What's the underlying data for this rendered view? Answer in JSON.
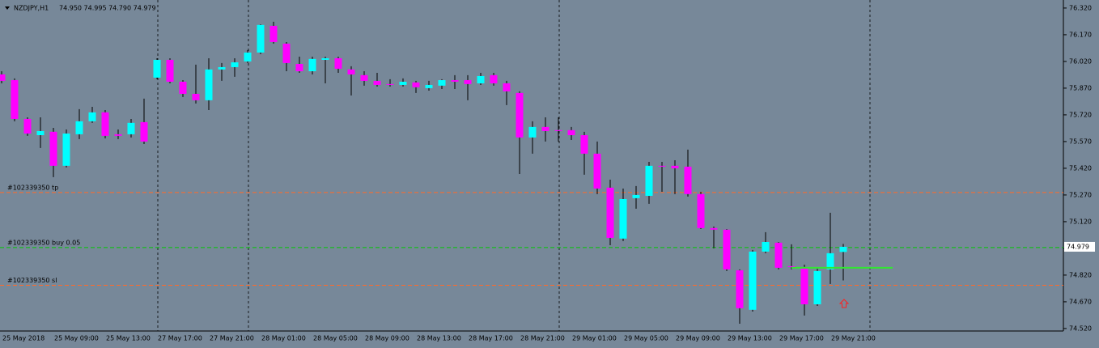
{
  "chart_data": {
    "type": "candlestick",
    "title": "NZDJPY,H1",
    "subtitle": "74.950 74.995 74.790 74.979",
    "up_color": "#00ffff",
    "down_color": "#ff00ff",
    "background": "#778899",
    "grid": false,
    "categories": [
      "25 May 2018",
      null,
      null,
      null,
      "25 May 09:00",
      null,
      null,
      null,
      "25 May 13:00",
      null,
      null,
      null,
      "27 May 17:00",
      null,
      null,
      null,
      "27 May 21:00",
      null,
      null,
      null,
      "28 May 01:00",
      null,
      null,
      null,
      "28 May 05:00",
      null,
      null,
      null,
      "28 May 09:00",
      null,
      null,
      null,
      "28 May 13:00",
      null,
      null,
      null,
      "28 May 17:00",
      null,
      null,
      null,
      "28 May 21:00",
      null,
      null,
      null,
      "29 May 01:00",
      null,
      null,
      null,
      "29 May 05:00",
      null,
      null,
      null,
      "29 May 09:00",
      null,
      null,
      null,
      "29 May 13:00",
      null,
      null,
      null,
      "29 May 17:00",
      null,
      null,
      null,
      "29 May 21:00",
      null
    ],
    "open": [
      75.947,
      75.915,
      75.697,
      75.606,
      75.625,
      75.434,
      75.611,
      75.684,
      75.734,
      75.611,
      75.611,
      75.679,
      75.929,
      76.029,
      75.906,
      75.838,
      75.802,
      75.975,
      75.988,
      76.02,
      76.07,
      76.22,
      76.12,
      76.006,
      75.965,
      76.029,
      76.038,
      75.975,
      75.943,
      75.911,
      75.893,
      75.888,
      75.902,
      75.87,
      75.884,
      75.915,
      75.915,
      75.897,
      75.943,
      75.897,
      75.843,
      75.593,
      75.652,
      75.634,
      75.634,
      75.606,
      75.502,
      75.311,
      75.025,
      75.252,
      75.265,
      75.434,
      75.434,
      75.429,
      75.275,
      75.084,
      75.075,
      74.847,
      74.625,
      74.952,
      75.002,
      74.87,
      74.865,
      74.656,
      74.852,
      74.95
    ],
    "high": [
      75.965,
      75.925,
      75.706,
      75.706,
      75.647,
      75.638,
      75.752,
      75.765,
      75.747,
      75.638,
      75.697,
      75.811,
      76.038,
      76.038,
      75.915,
      76.002,
      76.038,
      76.011,
      76.038,
      76.084,
      76.229,
      76.243,
      76.129,
      76.047,
      76.047,
      76.047,
      76.047,
      75.993,
      75.965,
      75.956,
      75.92,
      75.925,
      75.911,
      75.911,
      75.92,
      75.943,
      75.943,
      75.956,
      75.956,
      75.911,
      75.852,
      75.684,
      75.706,
      75.706,
      75.652,
      75.625,
      75.57,
      75.356,
      75.306,
      75.32,
      75.456,
      75.456,
      75.465,
      75.525,
      75.288,
      75.093,
      75.079,
      74.852,
      74.961,
      75.061,
      75.006,
      74.993,
      74.879,
      74.856,
      75.17,
      74.995
    ],
    "low": [
      75.897,
      75.684,
      75.602,
      75.534,
      75.37,
      75.425,
      75.584,
      75.675,
      75.588,
      75.584,
      75.593,
      75.556,
      75.92,
      75.897,
      75.82,
      75.784,
      75.747,
      75.911,
      75.934,
      76.011,
      76.061,
      76.12,
      75.965,
      75.956,
      75.947,
      75.897,
      75.956,
      75.829,
      75.884,
      75.879,
      75.879,
      75.879,
      75.843,
      75.856,
      75.865,
      75.865,
      75.802,
      75.888,
      75.884,
      75.775,
      75.388,
      75.502,
      75.57,
      75.57,
      75.579,
      75.384,
      75.275,
      74.988,
      75.011,
      75.193,
      75.22,
      75.288,
      75.275,
      75.261,
      75.079,
      74.97,
      74.843,
      74.547,
      74.615,
      74.943,
      74.852,
      74.852,
      74.593,
      74.647,
      74.77,
      74.79
    ],
    "close": [
      75.911,
      75.697,
      75.615,
      75.629,
      75.434,
      75.615,
      75.684,
      75.734,
      75.602,
      75.602,
      75.675,
      75.57,
      76.029,
      75.906,
      75.838,
      75.802,
      75.975,
      75.988,
      76.015,
      76.07,
      76.225,
      76.129,
      76.011,
      75.965,
      76.034,
      76.038,
      75.979,
      75.947,
      75.911,
      75.888,
      75.888,
      75.906,
      75.875,
      75.888,
      75.915,
      75.906,
      75.893,
      75.938,
      75.897,
      75.852,
      75.593,
      75.652,
      75.629,
      75.629,
      75.606,
      75.502,
      75.306,
      75.029,
      75.247,
      75.27,
      75.434,
      75.429,
      75.42,
      75.275,
      75.084,
      75.075,
      74.852,
      74.634,
      74.952,
      75.006,
      74.861,
      74.865,
      74.656,
      74.843,
      74.943,
      74.979
    ],
    "ylim": [
      74.506,
      76.356
    ],
    "yticks": [
      {
        "value": 76.32,
        "label": "76.320"
      },
      {
        "value": 76.17,
        "label": "76.170"
      },
      {
        "value": 76.02,
        "label": "76.020"
      },
      {
        "value": 75.87,
        "label": "75.870"
      },
      {
        "value": 75.72,
        "label": "75.720"
      },
      {
        "value": 75.57,
        "label": "75.570"
      },
      {
        "value": 75.42,
        "label": "75.420"
      },
      {
        "value": 75.27,
        "label": "75.270"
      },
      {
        "value": 75.12,
        "label": "75.120"
      },
      {
        "value": 74.97,
        "label": "74.970"
      },
      {
        "value": 74.82,
        "label": "74.820"
      },
      {
        "value": 74.67,
        "label": "74.670"
      },
      {
        "value": 74.52,
        "label": "74.520"
      }
    ],
    "price_label": 74.979,
    "levels": [
      {
        "label": "#102339350 tp",
        "value": 75.284,
        "color": "#ff6a2a"
      },
      {
        "label": "#102339350 buy 0.05",
        "value": 74.975,
        "color": "#00c800"
      },
      {
        "label": "#102339350 sl",
        "value": 74.763,
        "color": "#ff6a2a"
      }
    ],
    "indicator": {
      "value": 74.861,
      "color": "#32e632"
    }
  }
}
